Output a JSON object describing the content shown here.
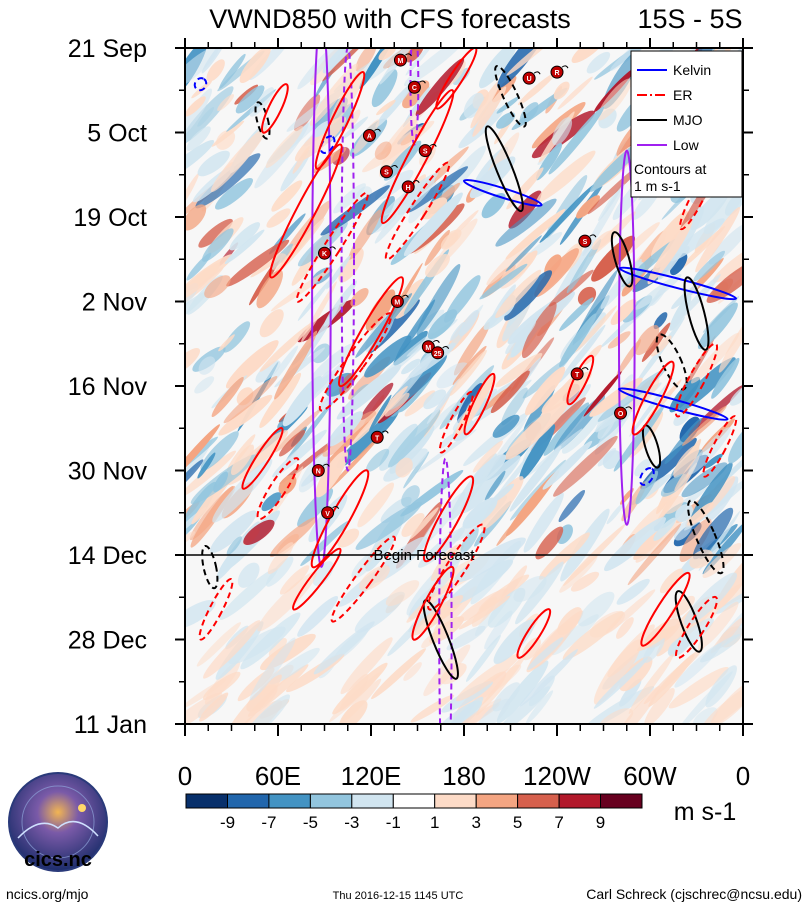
{
  "chart_data": {
    "type": "heatmap",
    "title": "VWND850 with CFS forecasts",
    "region": "15S - 5S",
    "x_ticks": [
      "0",
      "60E",
      "120E",
      "180",
      "120W",
      "60W",
      "0"
    ],
    "x_values": [
      0,
      60,
      120,
      180,
      240,
      300,
      360
    ],
    "xlim": [
      0,
      360
    ],
    "y_ticks": [
      "21 Sep",
      "5 Oct",
      "19 Oct",
      "2 Nov",
      "16 Nov",
      "30 Nov",
      "14 Dec",
      "28 Dec",
      "11 Jan"
    ],
    "y_values": [
      0,
      14,
      28,
      42,
      56,
      70,
      84,
      98,
      112
    ],
    "ylim_days": [
      0,
      112
    ],
    "forecast_start_day": 84,
    "forecast_label": "Begin Forecast",
    "legend": {
      "entries": [
        {
          "name": "Kelvin",
          "color": "#0000ff"
        },
        {
          "name": "ER",
          "color": "#ff0000"
        },
        {
          "name": "MJO",
          "color": "#000000"
        },
        {
          "name": "Low",
          "color": "#a020f0"
        }
      ],
      "note": "Contours at 1 m s-1"
    },
    "colorbar": {
      "labels": [
        "-9",
        "-7",
        "-5",
        "-3",
        "-1",
        "1",
        "3",
        "5",
        "7",
        "9"
      ],
      "colors": [
        "#08306b",
        "#2166ac",
        "#4393c3",
        "#92c5de",
        "#d1e5f0",
        "#ffffff",
        "#fddbc7",
        "#f4a582",
        "#d6604d",
        "#b2182b",
        "#67001f"
      ],
      "units": "m s-1"
    },
    "storms": [
      {
        "id": "M",
        "lon": 139,
        "day": 2
      },
      {
        "id": "C",
        "lon": 148,
        "day": 6.5
      },
      {
        "id": "U",
        "lon": 222,
        "day": 5
      },
      {
        "id": "R",
        "lon": 240,
        "day": 4
      },
      {
        "id": "A",
        "lon": 119,
        "day": 14.5
      },
      {
        "id": "S",
        "lon": 155,
        "day": 17
      },
      {
        "id": "S",
        "lon": 130,
        "day": 20.5
      },
      {
        "id": "H",
        "lon": 144,
        "day": 23
      },
      {
        "id": "S",
        "lon": 258,
        "day": 32
      },
      {
        "id": "K",
        "lon": 90,
        "day": 34
      },
      {
        "id": "M",
        "lon": 137,
        "day": 42
      },
      {
        "id": "M",
        "lon": 157,
        "day": 49.5
      },
      {
        "id": "25",
        "lon": 163,
        "day": 50.5
      },
      {
        "id": "T",
        "lon": 253,
        "day": 54
      },
      {
        "id": "O",
        "lon": 281,
        "day": 60.5
      },
      {
        "id": "T",
        "lon": 124,
        "day": 64.5
      },
      {
        "id": "N",
        "lon": 86,
        "day": 70
      },
      {
        "id": "V",
        "lon": 92,
        "day": 77
      }
    ],
    "contours": [
      {
        "wave": "Low",
        "dashed": false,
        "lon": 88,
        "day": 40,
        "len_days": 92,
        "width_lon": 12,
        "tilt_lon": 0
      },
      {
        "wave": "Low",
        "dashed": true,
        "lon": 105,
        "day": 35,
        "len_days": 70,
        "width_lon": 8,
        "tilt_lon": 0
      },
      {
        "wave": "Low",
        "dashed": true,
        "lon": 148,
        "day": 6,
        "len_days": 20,
        "width_lon": 5,
        "tilt_lon": 0
      },
      {
        "wave": "Low",
        "dashed": true,
        "lon": 168,
        "day": 97,
        "len_days": 58,
        "width_lon": 8,
        "tilt_lon": 0
      },
      {
        "wave": "Low",
        "dashed": false,
        "lon": 285,
        "day": 48,
        "len_days": 62,
        "width_lon": 10,
        "tilt_lon": 0
      },
      {
        "wave": "Kelvin",
        "dashed": false,
        "lon": 205,
        "day": 24,
        "len_days": 4,
        "width_lon": 6,
        "tilt_lon": 50
      },
      {
        "wave": "Kelvin",
        "dashed": false,
        "lon": 318,
        "day": 39,
        "len_days": 5,
        "width_lon": 6,
        "tilt_lon": 75
      },
      {
        "wave": "Kelvin",
        "dashed": false,
        "lon": 315,
        "day": 59,
        "len_days": 5,
        "width_lon": 6,
        "tilt_lon": 70
      },
      {
        "wave": "Kelvin",
        "dashed": true,
        "lon": 10,
        "day": 6,
        "len_days": 1,
        "width_lon": 8,
        "tilt_lon": 6
      },
      {
        "wave": "Kelvin",
        "dashed": true,
        "lon": 92,
        "day": 16,
        "len_days": 1,
        "width_lon": 12,
        "tilt_lon": 6
      },
      {
        "wave": "Kelvin",
        "dashed": true,
        "lon": 298,
        "day": 71,
        "len_days": 1,
        "width_lon": 12,
        "tilt_lon": 6
      },
      {
        "wave": "MJO",
        "dashed": false,
        "lon": 206,
        "day": 20,
        "len_days": 14,
        "width_lon": 10,
        "tilt_lon": 22
      },
      {
        "wave": "MJO",
        "dashed": true,
        "lon": 210,
        "day": 8,
        "len_days": 10,
        "width_lon": 9,
        "tilt_lon": 18
      },
      {
        "wave": "MJO",
        "dashed": true,
        "lon": 50,
        "day": 12,
        "len_days": 6,
        "width_lon": 7,
        "tilt_lon": 6
      },
      {
        "wave": "MJO",
        "dashed": false,
        "lon": 282,
        "day": 35,
        "len_days": 9,
        "width_lon": 9,
        "tilt_lon": 10
      },
      {
        "wave": "MJO",
        "dashed": false,
        "lon": 330,
        "day": 44,
        "len_days": 12,
        "width_lon": 10,
        "tilt_lon": 12
      },
      {
        "wave": "MJO",
        "dashed": true,
        "lon": 314,
        "day": 52,
        "len_days": 9,
        "width_lon": 12,
        "tilt_lon": 16
      },
      {
        "wave": "MJO",
        "dashed": false,
        "lon": 301,
        "day": 66,
        "len_days": 7,
        "width_lon": 8,
        "tilt_lon": 8
      },
      {
        "wave": "MJO",
        "dashed": true,
        "lon": 336,
        "day": 81,
        "len_days": 12,
        "width_lon": 12,
        "tilt_lon": 20
      },
      {
        "wave": "MJO",
        "dashed": false,
        "lon": 325,
        "day": 95,
        "len_days": 10,
        "width_lon": 10,
        "tilt_lon": 14
      },
      {
        "wave": "MJO",
        "dashed": false,
        "lon": 165,
        "day": 98,
        "len_days": 13,
        "width_lon": 10,
        "tilt_lon": 20
      },
      {
        "wave": "MJO",
        "dashed": true,
        "lon": 16,
        "day": 86,
        "len_days": 7,
        "width_lon": 8,
        "tilt_lon": 6
      },
      {
        "wave": "ER",
        "dashed": false,
        "lon": 58,
        "day": 10,
        "len_days": 8,
        "width_lon": 8,
        "tilt_lon": -15
      },
      {
        "wave": "ER",
        "dashed": false,
        "lon": 100,
        "day": 12,
        "len_days": 16,
        "width_lon": 10,
        "tilt_lon": -30
      },
      {
        "wave": "ER",
        "dashed": false,
        "lon": 78,
        "day": 27,
        "len_days": 22,
        "width_lon": 12,
        "tilt_lon": -45
      },
      {
        "wave": "ER",
        "dashed": true,
        "lon": 95,
        "day": 33,
        "len_days": 18,
        "width_lon": 10,
        "tilt_lon": -45
      },
      {
        "wave": "ER",
        "dashed": false,
        "lon": 150,
        "day": 18,
        "len_days": 22,
        "width_lon": 12,
        "tilt_lon": -45
      },
      {
        "wave": "ER",
        "dashed": true,
        "lon": 150,
        "day": 27,
        "len_days": 16,
        "width_lon": 10,
        "tilt_lon": -40
      },
      {
        "wave": "ER",
        "dashed": false,
        "lon": 175,
        "day": 5,
        "len_days": 10,
        "width_lon": 8,
        "tilt_lon": -25
      },
      {
        "wave": "ER",
        "dashed": false,
        "lon": 120,
        "day": 47,
        "len_days": 18,
        "width_lon": 12,
        "tilt_lon": -40
      },
      {
        "wave": "ER",
        "dashed": true,
        "lon": 110,
        "day": 52,
        "len_days": 16,
        "width_lon": 12,
        "tilt_lon": -45
      },
      {
        "wave": "ER",
        "dashed": false,
        "lon": 190,
        "day": 59,
        "len_days": 10,
        "width_lon": 8,
        "tilt_lon": -18
      },
      {
        "wave": "ER",
        "dashed": true,
        "lon": 175,
        "day": 62,
        "len_days": 10,
        "width_lon": 8,
        "tilt_lon": -20
      },
      {
        "wave": "ER",
        "dashed": false,
        "lon": 50,
        "day": 68,
        "len_days": 10,
        "width_lon": 8,
        "tilt_lon": -25
      },
      {
        "wave": "ER",
        "dashed": true,
        "lon": 60,
        "day": 73,
        "len_days": 10,
        "width_lon": 10,
        "tilt_lon": -25
      },
      {
        "wave": "ER",
        "dashed": false,
        "lon": 100,
        "day": 78,
        "len_days": 16,
        "width_lon": 12,
        "tilt_lon": -35
      },
      {
        "wave": "ER",
        "dashed": false,
        "lon": 85,
        "day": 88,
        "len_days": 10,
        "width_lon": 8,
        "tilt_lon": -30
      },
      {
        "wave": "ER",
        "dashed": true,
        "lon": 115,
        "day": 88,
        "len_days": 14,
        "width_lon": 10,
        "tilt_lon": -40
      },
      {
        "wave": "ER",
        "dashed": false,
        "lon": 170,
        "day": 78,
        "len_days": 14,
        "width_lon": 12,
        "tilt_lon": -30
      },
      {
        "wave": "ER",
        "dashed": false,
        "lon": 160,
        "day": 92,
        "len_days": 12,
        "width_lon": 10,
        "tilt_lon": -25
      },
      {
        "wave": "ER",
        "dashed": true,
        "lon": 175,
        "day": 86,
        "len_days": 14,
        "width_lon": 12,
        "tilt_lon": -35
      },
      {
        "wave": "ER",
        "dashed": false,
        "lon": 225,
        "day": 97,
        "len_days": 8,
        "width_lon": 8,
        "tilt_lon": -20
      },
      {
        "wave": "ER",
        "dashed": false,
        "lon": 255,
        "day": 55,
        "len_days": 8,
        "width_lon": 8,
        "tilt_lon": -15
      },
      {
        "wave": "ER",
        "dashed": false,
        "lon": 302,
        "day": 58,
        "len_days": 12,
        "width_lon": 10,
        "tilt_lon": -25
      },
      {
        "wave": "ER",
        "dashed": true,
        "lon": 330,
        "day": 55,
        "len_days": 12,
        "width_lon": 10,
        "tilt_lon": -25
      },
      {
        "wave": "ER",
        "dashed": true,
        "lon": 345,
        "day": 66,
        "len_days": 10,
        "width_lon": 8,
        "tilt_lon": -20
      },
      {
        "wave": "ER",
        "dashed": false,
        "lon": 310,
        "day": 93,
        "len_days": 12,
        "width_lon": 10,
        "tilt_lon": -30
      },
      {
        "wave": "ER",
        "dashed": true,
        "lon": 330,
        "day": 96,
        "len_days": 10,
        "width_lon": 10,
        "tilt_lon": -25
      },
      {
        "wave": "ER",
        "dashed": true,
        "lon": 20,
        "day": 93,
        "len_days": 10,
        "width_lon": 8,
        "tilt_lon": -20
      },
      {
        "wave": "ER",
        "dashed": true,
        "lon": 330,
        "day": 25,
        "len_days": 10,
        "width_lon": 8,
        "tilt_lon": -20
      }
    ]
  },
  "footer": {
    "left": "ncics.org/mjo",
    "center": "Thu 2016-12-15 1145 UTC",
    "right": "Carl Schreck (cjschrec@ncsu.edu)"
  },
  "logo": {
    "text": "cics.nc",
    "ring_text": "Cooperative Institute for Climate and Satellites"
  }
}
